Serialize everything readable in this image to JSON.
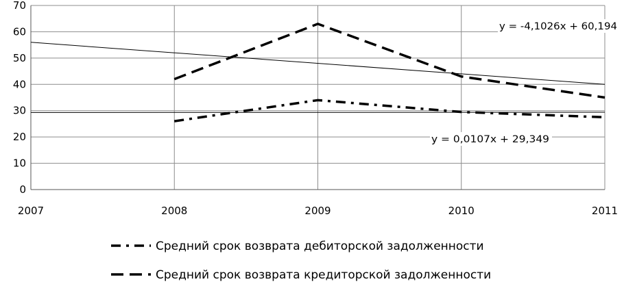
{
  "chart_data": {
    "type": "line",
    "x": [
      2008,
      2009,
      2010,
      2011
    ],
    "x_ticks": [
      "2007",
      "2008",
      "2009",
      "2010",
      "2011"
    ],
    "y_ticks": [
      "0",
      "10",
      "20",
      "30",
      "40",
      "50",
      "60",
      "70"
    ],
    "xlim": [
      2007,
      2011
    ],
    "ylim": [
      0,
      70
    ],
    "grid": "both",
    "legend_position": "bottom",
    "series": [
      {
        "name": "Средний срок возврата дебиторской задолженности",
        "values": [
          26,
          34,
          29.5,
          27.5
        ],
        "style": "dash-dot"
      },
      {
        "name": "Средний срок возврата кредиторской задолженности",
        "values": [
          42,
          63,
          43,
          35
        ],
        "style": "dashed"
      }
    ],
    "trendlines": [
      {
        "label": "y = -4,1026x + 60,194",
        "values": [
          56,
          40
        ]
      },
      {
        "label": "y = 0,0107x + 29,349",
        "values": [
          29.3,
          29.4
        ]
      }
    ]
  }
}
